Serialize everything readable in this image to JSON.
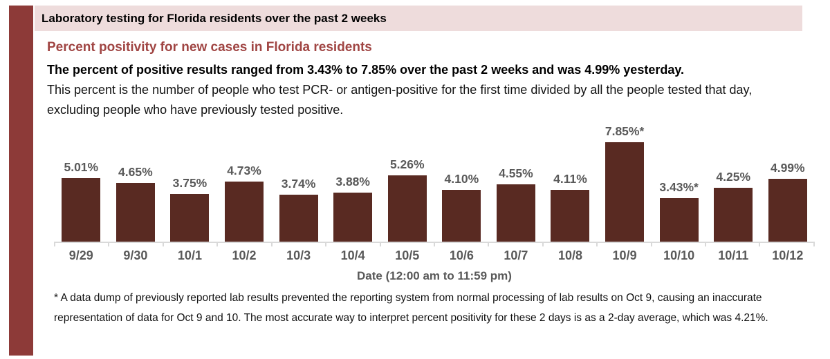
{
  "header": {
    "bar_text": "Laboratory testing for Florida residents over the past 2 weeks"
  },
  "section": {
    "title": "Percent positivity for new cases in Florida residents",
    "summary_bold": "The percent of positive results ranged from 3.43% to 7.85% over the past 2 weeks and was 4.99% yesterday.",
    "summary_rest": "This percent is the number of people who test PCR- or antigen-positive for the first time divided by all the people tested that day, excluding people who have previously tested positive.",
    "footnote": "* A data dump of previously reported lab results prevented the reporting system from normal processing of lab results on Oct 9, causing an inaccurate representation of data for Oct 9 and 10. The most accurate way to interpret percent positivity for these 2 days is as a 2-day average, which was 4.21%."
  },
  "chart_data": {
    "type": "bar",
    "title": "Percent positivity for new cases in Florida residents",
    "categories": [
      "9/29",
      "9/30",
      "10/1",
      "10/2",
      "10/3",
      "10/4",
      "10/5",
      "10/6",
      "10/7",
      "10/8",
      "10/9",
      "10/10",
      "10/11",
      "10/12"
    ],
    "values": [
      5.01,
      4.65,
      3.75,
      4.73,
      3.74,
      3.88,
      5.26,
      4.1,
      4.55,
      4.11,
      7.85,
      3.43,
      4.25,
      4.99
    ],
    "bar_labels": [
      "5.01%",
      "4.65%",
      "3.75%",
      "4.73%",
      "3.74%",
      "3.88%",
      "5.26%",
      "4.10%",
      "4.55%",
      "4.11%",
      "7.85%*",
      "3.43%*",
      "4.25%",
      "4.99%"
    ],
    "xlabel": "Date (12:00 am to 11:59 pm)",
    "ylabel": "",
    "ylim": [
      0,
      8.3
    ],
    "grid": false,
    "legend": "none",
    "bar_color": "#592a22",
    "value_label_color": "#595959",
    "axis_color": "#d9d9d9"
  },
  "colors": {
    "accent_stripe": "#8d3a38",
    "header_bg": "#eedcdc",
    "title_color": "#a04543",
    "bar_color": "#592a22",
    "gray_text": "#595959"
  }
}
